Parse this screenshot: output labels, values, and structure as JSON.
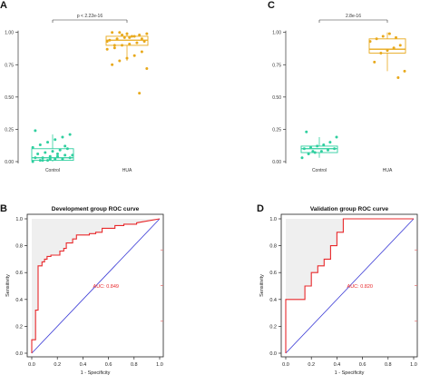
{
  "colors": {
    "control": "#2fcf9f",
    "hua": "#e8a91c",
    "roc_curve": "#e8282b",
    "diagonal": "#3b3bd6",
    "auc_text": "#e8282b",
    "fill": "#efefef"
  },
  "chart_data": [
    {
      "panel": "A",
      "type": "scatter",
      "subtype": "box-with-jitter",
      "categories": [
        "Control",
        "HUA"
      ],
      "significance_label": "p < 2.22e-16",
      "yticks": [
        "0.00",
        "0.25",
        "0.50",
        "0.75",
        "1.00"
      ],
      "ylim": [
        0,
        1.04
      ],
      "boxes": [
        {
          "category": "Control",
          "q1": 0.01,
          "median": 0.03,
          "q3": 0.1,
          "whisker_low": 0.0,
          "whisker_high": 0.21
        },
        {
          "category": "HUA",
          "q1": 0.9,
          "median": 0.94,
          "q3": 0.97,
          "whisker_low": 0.78,
          "whisker_high": 1.0
        }
      ],
      "series": [
        {
          "category": "Control",
          "values": [
            0.0,
            0.01,
            0.01,
            0.02,
            0.02,
            0.03,
            0.03,
            0.03,
            0.04,
            0.04,
            0.05,
            0.05,
            0.06,
            0.07,
            0.08,
            0.09,
            0.1,
            0.11,
            0.13,
            0.15,
            0.17,
            0.19,
            0.21,
            0.24,
            0.01,
            0.02,
            0.06,
            0.12
          ]
        },
        {
          "category": "HUA",
          "values": [
            0.53,
            0.72,
            0.75,
            0.78,
            0.8,
            0.82,
            0.85,
            0.87,
            0.88,
            0.9,
            0.91,
            0.92,
            0.93,
            0.94,
            0.95,
            0.96,
            0.97,
            0.98,
            0.99,
            1.0,
            1.0,
            0.99,
            0.97,
            0.95,
            0.93,
            0.9,
            0.98,
            0.96
          ]
        }
      ]
    },
    {
      "panel": "C",
      "type": "scatter",
      "subtype": "box-with-jitter",
      "categories": [
        "Control",
        "HUA"
      ],
      "significance_label": "2.8e-16",
      "yticks": [
        "0.00",
        "0.25",
        "0.50",
        "0.75",
        "1.00"
      ],
      "ylim": [
        0,
        1.04
      ],
      "boxes": [
        {
          "category": "Control",
          "q1": 0.07,
          "median": 0.1,
          "q3": 0.12,
          "whisker_low": 0.03,
          "whisker_high": 0.19
        },
        {
          "category": "HUA",
          "q1": 0.84,
          "median": 0.87,
          "q3": 0.95,
          "whisker_low": 0.7,
          "whisker_high": 1.0
        }
      ],
      "series": [
        {
          "category": "Control",
          "values": [
            0.03,
            0.06,
            0.07,
            0.08,
            0.09,
            0.1,
            0.1,
            0.11,
            0.12,
            0.13,
            0.15,
            0.19,
            0.23,
            0.08
          ]
        },
        {
          "category": "HUA",
          "values": [
            0.65,
            0.7,
            0.77,
            0.84,
            0.86,
            0.88,
            0.9,
            0.93,
            0.95,
            0.97,
            0.99,
            0.96
          ]
        }
      ]
    },
    {
      "panel": "B",
      "type": "line",
      "title": "Development group ROC curve",
      "xlabel": "1 - Specificity",
      "ylabel": "Sensitivity",
      "xticks": [
        "0.0",
        "0.2",
        "0.4",
        "0.6",
        "0.8",
        "1.0"
      ],
      "yticks": [
        "0.0",
        "0.2",
        "0.4",
        "0.6",
        "0.8",
        "1.0"
      ],
      "xlim": [
        0,
        1
      ],
      "ylim": [
        0,
        1
      ],
      "auc_label": "AUC: 0.849",
      "series": [
        {
          "x": [
            0,
            0,
            0.03,
            0.03,
            0.05,
            0.05,
            0.08,
            0.08,
            0.1,
            0.1,
            0.12,
            0.12,
            0.15,
            0.15,
            0.22,
            0.22,
            0.25,
            0.25,
            0.27,
            0.27,
            0.32,
            0.32,
            0.35,
            0.35,
            0.45,
            0.45,
            0.5,
            0.5,
            0.55,
            0.55,
            0.65,
            0.65,
            0.72,
            0.72,
            0.82,
            0.82,
            1.0
          ],
          "y": [
            0,
            0.1,
            0.1,
            0.32,
            0.32,
            0.65,
            0.65,
            0.68,
            0.68,
            0.7,
            0.7,
            0.72,
            0.72,
            0.73,
            0.73,
            0.76,
            0.76,
            0.78,
            0.78,
            0.82,
            0.82,
            0.85,
            0.85,
            0.88,
            0.88,
            0.89,
            0.89,
            0.9,
            0.9,
            0.93,
            0.93,
            0.95,
            0.95,
            0.96,
            0.96,
            0.97,
            1.0
          ]
        },
        {
          "x": [
            0,
            1
          ],
          "y": [
            0,
            1
          ]
        }
      ]
    },
    {
      "panel": "D",
      "type": "line",
      "title": "Validation group ROC curve",
      "xlabel": "1 - Specificity",
      "ylabel": "Sensitivity",
      "xticks": [
        "0.0",
        "0.2",
        "0.4",
        "0.6",
        "0.8",
        "1.0"
      ],
      "yticks": [
        "0.0",
        "0.2",
        "0.4",
        "0.6",
        "0.8",
        "1.0"
      ],
      "xlim": [
        0,
        1
      ],
      "ylim": [
        0,
        1
      ],
      "auc_label": "AUC: 0.820",
      "series": [
        {
          "x": [
            0,
            0,
            0.15,
            0.15,
            0.2,
            0.2,
            0.25,
            0.25,
            0.3,
            0.3,
            0.35,
            0.35,
            0.4,
            0.4,
            0.45,
            0.45,
            1.0
          ],
          "y": [
            0,
            0.4,
            0.4,
            0.5,
            0.5,
            0.6,
            0.6,
            0.65,
            0.65,
            0.7,
            0.7,
            0.8,
            0.8,
            0.9,
            0.9,
            1.0,
            1.0
          ]
        },
        {
          "x": [
            0,
            1
          ],
          "y": [
            0,
            1
          ]
        }
      ]
    }
  ],
  "panel_letters": [
    "A",
    "C",
    "B",
    "D"
  ]
}
